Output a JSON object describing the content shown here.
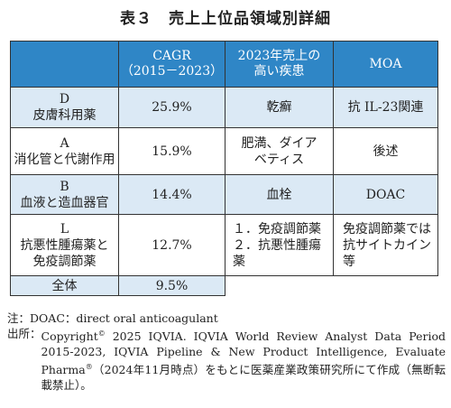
{
  "title": "表３　売上上位品領域別詳細",
  "headers": {
    "col1": "",
    "cagr_line1": "CAGR",
    "cagr_line2": "（2015－2023）",
    "disease_line1": "2023年売上の",
    "disease_line2": "高い疾患",
    "moa": "MOA"
  },
  "rows": [
    {
      "code": "D",
      "name": "皮膚科用薬",
      "cagr": "25.9%",
      "disease1": "乾癬",
      "disease2": "",
      "moa1": "抗 IL-23関連",
      "moa2": ""
    },
    {
      "code": "A",
      "name": "消化管と代謝作用",
      "cagr": "15.9%",
      "disease1": "肥満、ダイア",
      "disease2": "ベティス",
      "moa1": "後述",
      "moa2": ""
    },
    {
      "code": "B",
      "name": "血液と造血器官",
      "cagr": "14.4%",
      "disease1": "血栓",
      "disease2": "",
      "moa1": "DOAC",
      "moa2": ""
    },
    {
      "code": "L",
      "name1": "抗悪性腫瘍薬と",
      "name2": "免疫調節薬",
      "cagr": "12.7%",
      "disease1": "１．免疫調節薬",
      "disease2": "２．抗悪性腫瘍薬",
      "moa1": "免疫調節薬では",
      "moa2": "抗サイトカイン等"
    }
  ],
  "total": {
    "label": "全体",
    "cagr": "9.5%"
  },
  "notes": {
    "note_prefix": "注：",
    "note_text": "DOAC：direct oral anticoagulant",
    "source_prefix": "出所：",
    "source_a": "Copyright",
    "source_sup1": "©",
    "source_b": " 2025 IQVIA. IQVIA World Review Analyst Data Period 2015-2023, IQVIA Pipeline & New Product Intelligence, Evaluate Pharma",
    "source_sup2": "®",
    "source_c": "（2024年11月時点）をもとに医薬産業政策研究所にて作成（無断転載禁止）。"
  },
  "colors": {
    "header_bg": "#2f86c6",
    "shade_bg": "#dbe9f5"
  }
}
